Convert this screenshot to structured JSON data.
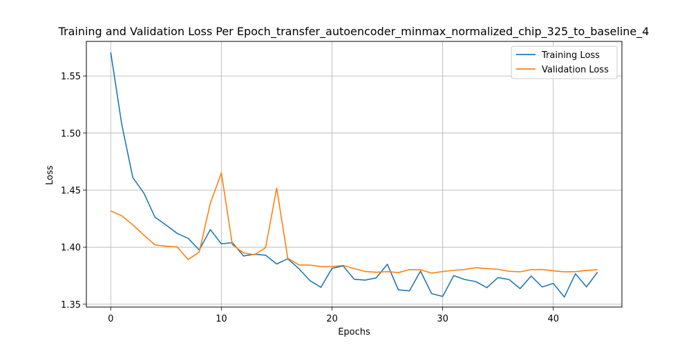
{
  "chart_data": {
    "type": "line",
    "title": "Training and Validation Loss Per Epoch_transfer_autoencoder_minmax_normalized_chip_325_to_baseline_4",
    "xlabel": "Epochs",
    "ylabel": "Loss",
    "xlim": [
      -2.2,
      46.2
    ],
    "ylim": [
      1.3475,
      1.5803
    ],
    "xticks": [
      0,
      10,
      20,
      30,
      40
    ],
    "yticks": [
      1.35,
      1.4,
      1.45,
      1.5,
      1.55
    ],
    "ytick_labels": [
      "1.35",
      "1.40",
      "1.45",
      "1.50",
      "1.55"
    ],
    "grid": true,
    "legend_position": "top-right",
    "x": [
      0,
      1,
      2,
      3,
      4,
      5,
      6,
      7,
      8,
      9,
      10,
      11,
      12,
      13,
      14,
      15,
      16,
      17,
      18,
      19,
      20,
      21,
      22,
      23,
      24,
      25,
      26,
      27,
      28,
      29,
      30,
      31,
      32,
      33,
      34,
      35,
      36,
      37,
      38,
      39,
      40,
      41,
      42,
      43,
      44
    ],
    "series": [
      {
        "name": "Training Loss",
        "color": "#1f77b4",
        "values": [
          1.5707,
          1.5074,
          1.4609,
          1.4473,
          1.4263,
          1.4194,
          1.4121,
          1.4077,
          1.3975,
          1.4154,
          1.4029,
          1.4039,
          1.3923,
          1.3938,
          1.3929,
          1.3852,
          1.3898,
          1.3812,
          1.3707,
          1.3648,
          1.3814,
          1.3836,
          1.3719,
          1.3711,
          1.3731,
          1.385,
          1.3626,
          1.3617,
          1.379,
          1.3593,
          1.3568,
          1.3751,
          1.3716,
          1.3698,
          1.3645,
          1.3733,
          1.3716,
          1.3637,
          1.3747,
          1.3651,
          1.3682,
          1.3563,
          1.3767,
          1.3652,
          1.3781
        ]
      },
      {
        "name": "Validation Loss",
        "color": "#ff7f0e",
        "values": [
          1.4317,
          1.4275,
          1.4195,
          1.4105,
          1.402,
          1.4008,
          1.4002,
          1.3891,
          1.3957,
          1.4384,
          1.465,
          1.402,
          1.395,
          1.3933,
          1.3996,
          1.4518,
          1.3903,
          1.3844,
          1.3843,
          1.383,
          1.3829,
          1.384,
          1.3812,
          1.3787,
          1.378,
          1.3785,
          1.3777,
          1.3803,
          1.3802,
          1.3772,
          1.3786,
          1.3797,
          1.3804,
          1.382,
          1.3812,
          1.3806,
          1.3788,
          1.3784,
          1.3803,
          1.3804,
          1.3793,
          1.3784,
          1.3785,
          1.3796,
          1.3802
        ]
      }
    ]
  }
}
